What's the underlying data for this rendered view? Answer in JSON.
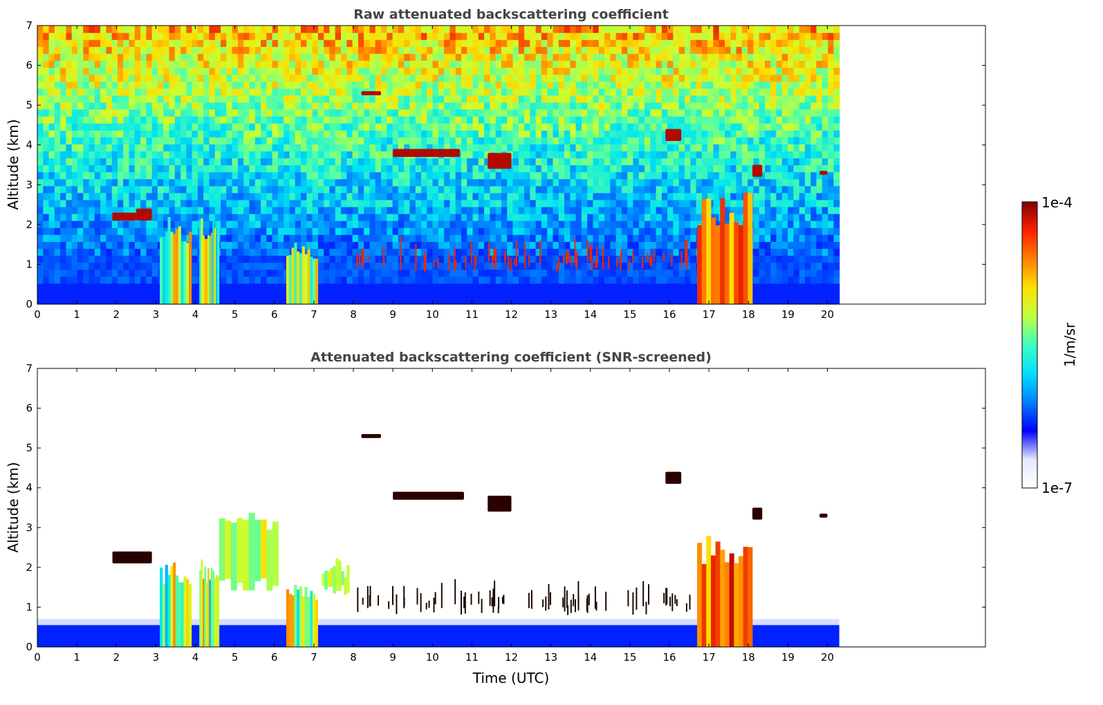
{
  "chart_data": [
    {
      "type": "heatmap",
      "title": "Raw attenuated backscattering coefficient",
      "xlabel": "",
      "ylabel": "Altitude (km)",
      "xlim": [
        0,
        24
      ],
      "ylim": [
        0,
        7
      ],
      "x_ticks": [
        "0",
        "1",
        "2",
        "3",
        "4",
        "5",
        "6",
        "7",
        "8",
        "9",
        "10",
        "11",
        "12",
        "13",
        "14",
        "15",
        "16",
        "17",
        "18",
        "19",
        "20"
      ],
      "y_ticks": [
        "0",
        "1",
        "2",
        "3",
        "4",
        "5",
        "6",
        "7"
      ],
      "data_time_extent": [
        0,
        20.3
      ],
      "background": "noisy gradient: blue near ground, green/yellow mid altitude, orange/red speckle above 5 km",
      "features": [
        {
          "kind": "boundary_layer",
          "t0": 0,
          "t1": 20.3,
          "z0": 0,
          "z1": 0.5,
          "value": "1e-6"
        },
        {
          "kind": "precipitation_column",
          "t0": 3.1,
          "t1": 3.9,
          "z0": 0,
          "z1": 2.2,
          "value": "high"
        },
        {
          "kind": "precipitation_column",
          "t0": 4.1,
          "t1": 4.6,
          "z0": 0,
          "z1": 2.3,
          "value": "high"
        },
        {
          "kind": "precipitation_column",
          "t0": 6.3,
          "t1": 7.1,
          "z0": 0,
          "z1": 1.6,
          "value": "high"
        },
        {
          "kind": "precipitation_column",
          "t0": 16.7,
          "t1": 18.1,
          "z0": 0,
          "z1": 2.8,
          "value": "very high"
        },
        {
          "kind": "cloud_layer",
          "t0": 1.9,
          "t1": 2.5,
          "z0": 2.1,
          "z1": 2.3
        },
        {
          "kind": "cloud_layer",
          "t0": 2.5,
          "t1": 2.9,
          "z0": 2.1,
          "z1": 2.4
        },
        {
          "kind": "cloud_layer",
          "t0": 9.0,
          "t1": 10.7,
          "z0": 3.7,
          "z1": 3.9
        },
        {
          "kind": "cloud_layer",
          "t0": 11.4,
          "t1": 12.0,
          "z0": 3.4,
          "z1": 3.8
        },
        {
          "kind": "cloud_layer",
          "t0": 8.2,
          "t1": 8.7,
          "z0": 5.25,
          "z1": 5.35
        },
        {
          "kind": "cloud_layer",
          "t0": 15.9,
          "t1": 16.3,
          "z0": 4.1,
          "z1": 4.4
        },
        {
          "kind": "cloud_layer",
          "t0": 18.1,
          "t1": 18.35,
          "z0": 3.2,
          "z1": 3.5
        },
        {
          "kind": "cloud_layer",
          "t0": 19.8,
          "t1": 20.0,
          "z0": 3.25,
          "z1": 3.35
        },
        {
          "kind": "low_cloud_streaks",
          "t0": 8.0,
          "t1": 16.5,
          "z0": 0.8,
          "z1": 1.6
        }
      ]
    },
    {
      "type": "heatmap",
      "title": "Attenuated backscattering coefficient (SNR-screened)",
      "xlabel": "Time (UTC)",
      "ylabel": "Altitude (km)",
      "xlim": [
        0,
        24
      ],
      "ylim": [
        0,
        7
      ],
      "x_ticks": [
        "0",
        "1",
        "2",
        "3",
        "4",
        "5",
        "6",
        "7",
        "8",
        "9",
        "10",
        "11",
        "12",
        "13",
        "14",
        "15",
        "16",
        "17",
        "18",
        "19",
        "20"
      ],
      "y_ticks": [
        "0",
        "1",
        "2",
        "3",
        "4",
        "5",
        "6",
        "7"
      ],
      "data_time_extent": [
        0,
        20.3
      ],
      "background": "white (screened out)",
      "features": [
        {
          "kind": "boundary_layer",
          "t0": 0,
          "t1": 20.3,
          "z0": 0,
          "z1": 0.55,
          "value": "1e-6"
        },
        {
          "kind": "precipitation_column",
          "t0": 3.1,
          "t1": 3.9,
          "z0": 0,
          "z1": 2.2,
          "value": "high"
        },
        {
          "kind": "precipitation_column",
          "t0": 4.1,
          "t1": 4.6,
          "z0": 0,
          "z1": 2.3,
          "value": "high"
        },
        {
          "kind": "precipitation_column",
          "t0": 6.3,
          "t1": 7.1,
          "z0": 0,
          "z1": 1.6,
          "value": "high"
        },
        {
          "kind": "precipitation_column",
          "t0": 16.7,
          "t1": 18.1,
          "z0": 0,
          "z1": 2.8,
          "value": "very high"
        },
        {
          "kind": "aerosol_plume",
          "t0": 4.6,
          "t1": 6.1,
          "z0": 1.4,
          "z1": 3.4,
          "value": "mid"
        },
        {
          "kind": "aerosol_plume",
          "t0": 7.2,
          "t1": 7.9,
          "z0": 1.3,
          "z1": 2.3,
          "value": "mid"
        },
        {
          "kind": "cloud_layer",
          "t0": 1.9,
          "t1": 2.9,
          "z0": 2.1,
          "z1": 2.4
        },
        {
          "kind": "cloud_layer",
          "t0": 9.0,
          "t1": 10.8,
          "z0": 3.7,
          "z1": 3.9
        },
        {
          "kind": "cloud_layer",
          "t0": 11.4,
          "t1": 12.0,
          "z0": 3.4,
          "z1": 3.8
        },
        {
          "kind": "cloud_layer",
          "t0": 8.2,
          "t1": 8.7,
          "z0": 5.25,
          "z1": 5.35
        },
        {
          "kind": "cloud_layer",
          "t0": 15.9,
          "t1": 16.3,
          "z0": 4.1,
          "z1": 4.4
        },
        {
          "kind": "cloud_layer",
          "t0": 18.1,
          "t1": 18.35,
          "z0": 3.2,
          "z1": 3.5
        },
        {
          "kind": "cloud_layer",
          "t0": 19.8,
          "t1": 20.0,
          "z0": 3.25,
          "z1": 3.35
        },
        {
          "kind": "low_cloud_streaks",
          "t0": 8.0,
          "t1": 16.5,
          "z0": 0.8,
          "z1": 1.8
        }
      ]
    }
  ],
  "colorbar": {
    "label": "1/m/sr",
    "max_label": "1e-4",
    "min_label": "1e-7",
    "colormap": "jet (white at minimum)",
    "colors": [
      "#ffffff",
      "#e4e8ff",
      "#0000ff",
      "#0080ff",
      "#00e0ff",
      "#40ffbf",
      "#c0ff40",
      "#ffe000",
      "#ff8000",
      "#ff2000",
      "#800000"
    ]
  }
}
